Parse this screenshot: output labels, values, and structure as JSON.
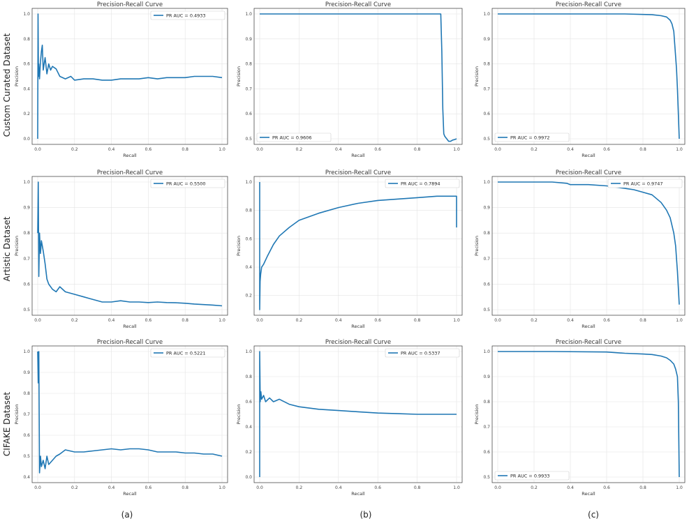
{
  "row_labels": [
    "Custom Curated Dataset",
    "Artistic Dataset",
    "CIFAKE Dataset"
  ],
  "column_labels": [
    "(a)",
    "(b)",
    "(c)"
  ],
  "chart_data": [
    {
      "type": "line",
      "title": "Precision-Recall Curve",
      "xlabel": "Recall",
      "ylabel": "Precision",
      "xlim": [
        0,
        1
      ],
      "ylim": [
        0.0,
        1.0
      ],
      "yticks": [
        0.0,
        0.2,
        0.4,
        0.6,
        0.8,
        1.0
      ],
      "grid": true,
      "legend_position": "top-right",
      "series": [
        {
          "name": "PR AUC = 0.4933",
          "x": [
            0.0,
            0.002,
            0.004,
            0.006,
            0.01,
            0.015,
            0.02,
            0.025,
            0.03,
            0.04,
            0.05,
            0.06,
            0.07,
            0.08,
            0.1,
            0.12,
            0.15,
            0.18,
            0.2,
            0.25,
            0.3,
            0.35,
            0.4,
            0.45,
            0.5,
            0.55,
            0.6,
            0.65,
            0.7,
            0.75,
            0.8,
            0.85,
            0.9,
            0.95,
            1.0
          ],
          "y": [
            0.0,
            1.0,
            0.5,
            0.6,
            0.48,
            0.62,
            0.7,
            0.75,
            0.55,
            0.65,
            0.52,
            0.6,
            0.55,
            0.58,
            0.56,
            0.5,
            0.48,
            0.5,
            0.47,
            0.48,
            0.48,
            0.47,
            0.47,
            0.48,
            0.48,
            0.48,
            0.49,
            0.48,
            0.49,
            0.49,
            0.49,
            0.5,
            0.5,
            0.5,
            0.49
          ]
        }
      ]
    },
    {
      "type": "line",
      "title": "Precision-Recall Curve",
      "xlabel": "Recall",
      "ylabel": "Precision",
      "xlim": [
        0,
        1
      ],
      "ylim": [
        0.5,
        1.0
      ],
      "yticks": [
        0.5,
        0.6,
        0.7,
        0.8,
        0.9,
        1.0
      ],
      "grid": true,
      "legend_position": "bottom-left",
      "series": [
        {
          "name": "PR AUC = 0.9606",
          "x": [
            0.0,
            0.3,
            0.6,
            0.9,
            0.92,
            0.925,
            0.93,
            0.935,
            0.94,
            0.95,
            0.96,
            0.97,
            0.98,
            0.99,
            1.0
          ],
          "y": [
            1.0,
            1.0,
            1.0,
            1.0,
            1.0,
            0.85,
            0.62,
            0.52,
            0.51,
            0.5,
            0.49,
            0.49,
            0.495,
            0.497,
            0.5
          ]
        }
      ]
    },
    {
      "type": "line",
      "title": "Precision-Recall Curve",
      "xlabel": "Recall",
      "ylabel": "Precision",
      "xlim": [
        0,
        1
      ],
      "ylim": [
        0.5,
        1.0
      ],
      "yticks": [
        0.5,
        0.6,
        0.7,
        0.8,
        0.9,
        1.0
      ],
      "grid": true,
      "legend_position": "bottom-left",
      "series": [
        {
          "name": "PR AUC = 0.9972",
          "x": [
            0.0,
            0.4,
            0.7,
            0.8,
            0.85,
            0.9,
            0.93,
            0.95,
            0.96,
            0.97,
            0.975,
            0.98,
            0.985,
            0.99,
            0.995,
            1.0
          ],
          "y": [
            1.0,
            1.0,
            1.0,
            0.998,
            0.997,
            0.993,
            0.988,
            0.975,
            0.96,
            0.93,
            0.88,
            0.83,
            0.78,
            0.7,
            0.6,
            0.5
          ]
        }
      ]
    },
    {
      "type": "line",
      "title": "Precision-Recall Curve",
      "xlabel": "Recall",
      "ylabel": "Precision",
      "xlim": [
        0,
        1
      ],
      "ylim": [
        0.5,
        1.0
      ],
      "yticks": [
        0.5,
        0.6,
        0.7,
        0.8,
        0.9,
        1.0
      ],
      "grid": true,
      "legend_position": "top-right",
      "series": [
        {
          "name": "PR AUC = 0.5500",
          "x": [
            0.0,
            0.003,
            0.006,
            0.01,
            0.015,
            0.02,
            0.03,
            0.04,
            0.05,
            0.06,
            0.08,
            0.1,
            0.12,
            0.15,
            0.2,
            0.25,
            0.3,
            0.35,
            0.4,
            0.45,
            0.5,
            0.55,
            0.6,
            0.65,
            0.7,
            0.75,
            0.8,
            0.85,
            0.9,
            0.95,
            1.0
          ],
          "y": [
            0.8,
            1.0,
            0.63,
            0.8,
            0.72,
            0.77,
            0.73,
            0.68,
            0.62,
            0.6,
            0.58,
            0.57,
            0.59,
            0.57,
            0.56,
            0.55,
            0.54,
            0.53,
            0.53,
            0.535,
            0.53,
            0.53,
            0.528,
            0.53,
            0.528,
            0.527,
            0.525,
            0.522,
            0.52,
            0.518,
            0.515
          ]
        }
      ]
    },
    {
      "type": "line",
      "title": "Precision-Recall Curve",
      "xlabel": "Recall",
      "ylabel": "Precision",
      "xlim": [
        0,
        1
      ],
      "ylim": [
        0.1,
        1.0
      ],
      "yticks": [
        0.2,
        0.4,
        0.6,
        0.8,
        1.0
      ],
      "grid": true,
      "legend_position": "top-right",
      "series": [
        {
          "name": "PR AUC = 0.7894",
          "x": [
            0.0,
            0.0,
            0.002,
            0.005,
            0.01,
            0.02,
            0.04,
            0.07,
            0.1,
            0.15,
            0.2,
            0.3,
            0.4,
            0.5,
            0.6,
            0.7,
            0.8,
            0.9,
            0.95,
            1.0,
            1.0
          ],
          "y": [
            1.0,
            0.1,
            0.3,
            0.35,
            0.4,
            0.42,
            0.48,
            0.56,
            0.62,
            0.68,
            0.73,
            0.78,
            0.82,
            0.85,
            0.87,
            0.88,
            0.89,
            0.9,
            0.9,
            0.9,
            0.68
          ]
        }
      ]
    },
    {
      "type": "line",
      "title": "Precision-Recall Curve",
      "xlabel": "Recall",
      "ylabel": "Precision",
      "xlim": [
        0,
        1
      ],
      "ylim": [
        0.5,
        1.0
      ],
      "yticks": [
        0.5,
        0.6,
        0.7,
        0.8,
        0.9,
        1.0
      ],
      "grid": true,
      "legend_position": "top-right",
      "series": [
        {
          "name": "PR AUC = 0.9747",
          "x": [
            0.0,
            0.2,
            0.3,
            0.38,
            0.4,
            0.5,
            0.6,
            0.7,
            0.75,
            0.8,
            0.85,
            0.9,
            0.93,
            0.95,
            0.97,
            0.98,
            0.99,
            1.0
          ],
          "y": [
            1.0,
            1.0,
            1.0,
            0.995,
            0.99,
            0.99,
            0.985,
            0.975,
            0.97,
            0.96,
            0.95,
            0.92,
            0.89,
            0.86,
            0.8,
            0.75,
            0.65,
            0.52
          ]
        }
      ]
    },
    {
      "type": "line",
      "title": "Precision-Recall Curve",
      "xlabel": "Recall",
      "ylabel": "Precision",
      "xlim": [
        0,
        1
      ],
      "ylim": [
        0.4,
        1.0
      ],
      "yticks": [
        0.4,
        0.5,
        0.6,
        0.7,
        0.8,
        0.9,
        1.0
      ],
      "grid": true,
      "legend_position": "top-right",
      "series": [
        {
          "name": "PR AUC = 0.5221",
          "x": [
            0.0,
            0.003,
            0.006,
            0.01,
            0.015,
            0.02,
            0.03,
            0.04,
            0.05,
            0.06,
            0.08,
            0.1,
            0.12,
            0.15,
            0.2,
            0.25,
            0.3,
            0.35,
            0.4,
            0.45,
            0.5,
            0.55,
            0.6,
            0.65,
            0.7,
            0.75,
            0.8,
            0.85,
            0.9,
            0.95,
            1.0
          ],
          "y": [
            1.0,
            0.85,
            1.0,
            0.42,
            0.5,
            0.45,
            0.48,
            0.44,
            0.5,
            0.46,
            0.48,
            0.5,
            0.51,
            0.53,
            0.52,
            0.52,
            0.525,
            0.53,
            0.535,
            0.53,
            0.535,
            0.535,
            0.53,
            0.52,
            0.52,
            0.52,
            0.515,
            0.515,
            0.51,
            0.51,
            0.5
          ]
        }
      ]
    },
    {
      "type": "line",
      "title": "Precision-Recall Curve",
      "xlabel": "Recall",
      "ylabel": "Precision",
      "xlim": [
        0,
        1
      ],
      "ylim": [
        0.0,
        1.0
      ],
      "yticks": [
        0.0,
        0.2,
        0.4,
        0.6,
        0.8,
        1.0
      ],
      "grid": true,
      "legend_position": "top-right",
      "series": [
        {
          "name": "PR AUC = 0.5337",
          "x": [
            0.0,
            0.0,
            0.003,
            0.006,
            0.01,
            0.02,
            0.03,
            0.05,
            0.07,
            0.1,
            0.15,
            0.2,
            0.3,
            0.4,
            0.5,
            0.6,
            0.7,
            0.8,
            0.9,
            0.95,
            1.0
          ],
          "y": [
            0.0,
            1.0,
            0.6,
            0.68,
            0.62,
            0.65,
            0.6,
            0.63,
            0.6,
            0.62,
            0.58,
            0.56,
            0.54,
            0.53,
            0.52,
            0.51,
            0.505,
            0.5,
            0.5,
            0.5,
            0.5
          ]
        }
      ]
    },
    {
      "type": "line",
      "title": "Precision-Recall Curve",
      "xlabel": "Recall",
      "ylabel": "Precision",
      "xlim": [
        0,
        1
      ],
      "ylim": [
        0.5,
        1.0
      ],
      "yticks": [
        0.5,
        0.6,
        0.7,
        0.8,
        0.9,
        1.0
      ],
      "grid": true,
      "legend_position": "bottom-left",
      "series": [
        {
          "name": "PR AUC = 0.9933",
          "x": [
            0.0,
            0.3,
            0.6,
            0.7,
            0.8,
            0.85,
            0.9,
            0.93,
            0.95,
            0.97,
            0.98,
            0.99,
            0.995,
            1.0
          ],
          "y": [
            1.0,
            1.0,
            0.998,
            0.993,
            0.99,
            0.988,
            0.982,
            0.975,
            0.965,
            0.95,
            0.93,
            0.9,
            0.8,
            0.5
          ]
        }
      ]
    }
  ],
  "colors": {
    "line": "#1f77b4",
    "grid": "#e3e3e3",
    "axis": "#333333"
  }
}
